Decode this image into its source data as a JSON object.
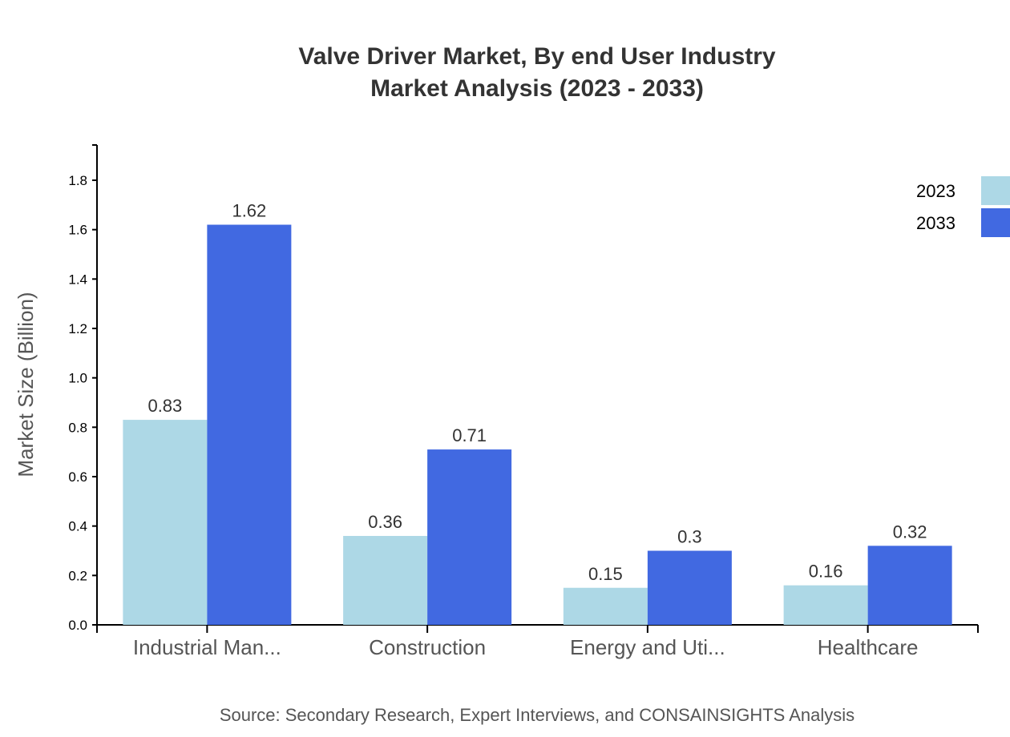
{
  "chart_data": {
    "type": "bar",
    "title": [
      "Valve Driver Market, By end User Industry",
      "Market Analysis (2023 - 2033)"
    ],
    "xlabel": "",
    "ylabel": "Market Size (Billion)",
    "ylim": [
      0,
      1.9
    ],
    "yticks": [
      "0.0",
      "0.2",
      "0.4",
      "0.6",
      "0.8",
      "1.0",
      "1.2",
      "1.4",
      "1.6",
      "1.8"
    ],
    "categories": [
      "Industrial Man...",
      "Construction",
      "Energy and Uti...",
      "Healthcare"
    ],
    "series": [
      {
        "name": "2023",
        "color": "#ADD8E6",
        "values": [
          0.83,
          0.36,
          0.15,
          0.16
        ]
      },
      {
        "name": "2033",
        "color": "#4169E1",
        "values": [
          1.62,
          0.71,
          0.3,
          0.32
        ]
      }
    ],
    "legend_position": "top-right",
    "grid": false,
    "source": "Source: Secondary Research, Expert Interviews, and CONSAINSIGHTS Analysis"
  }
}
